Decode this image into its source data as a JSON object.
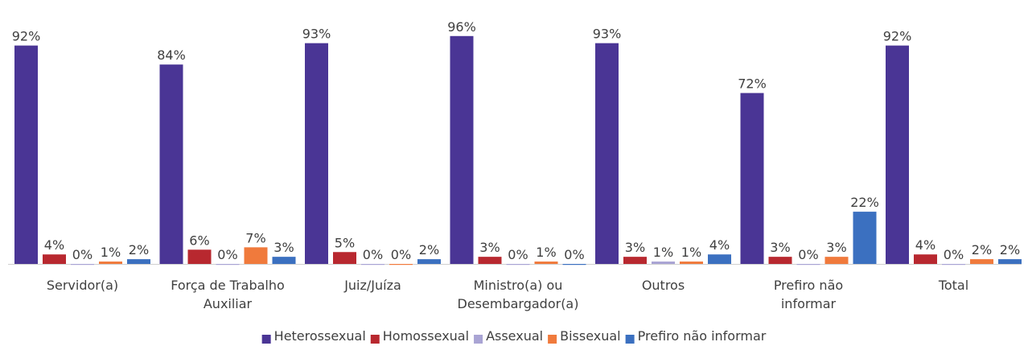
{
  "chart_data": {
    "type": "bar",
    "categories": [
      "Servidor(a)",
      "Força de Trabalho Auxiliar",
      "Juiz/Juíza",
      "Ministro(a) ou Desembargador(a)",
      "Outros",
      "Prefiro não informar",
      "Total"
    ],
    "ylim": [
      0,
      100
    ],
    "legend": "bottom",
    "series": [
      {
        "name": "Heterossexual",
        "color": "#4a3595",
        "values": [
          92,
          84,
          93,
          96,
          93,
          72,
          92
        ],
        "value_labels": [
          "92%",
          "84%",
          "93%",
          "96%",
          "93%",
          "72%",
          "92%"
        ]
      },
      {
        "name": "Homossexual",
        "color": "#b8282f",
        "values": [
          4,
          6,
          5,
          3,
          3,
          3,
          4
        ],
        "value_labels": [
          "4%",
          "6%",
          "5%",
          "3%",
          "3%",
          "3%",
          "4%"
        ]
      },
      {
        "name": "Assexual",
        "color": "#a9a4d4",
        "values": [
          0,
          0,
          0,
          0,
          1,
          0,
          0
        ],
        "value_labels": [
          "0%",
          "0%",
          "0%",
          "0%",
          "1%",
          "0%",
          "0%"
        ]
      },
      {
        "name": "Bissexual",
        "color": "#f07a3c",
        "values": [
          1,
          7,
          0,
          1,
          1,
          3,
          2
        ],
        "value_labels": [
          "1%",
          "7%",
          "0%",
          "1%",
          "1%",
          "3%",
          "2%"
        ]
      },
      {
        "name": "Prefiro não informar",
        "color": "#3b70c0",
        "values": [
          2,
          3,
          2,
          0,
          4,
          22,
          2
        ],
        "value_labels": [
          "2%",
          "3%",
          "2%",
          "0%",
          "4%",
          "22%",
          "2%"
        ]
      }
    ]
  }
}
